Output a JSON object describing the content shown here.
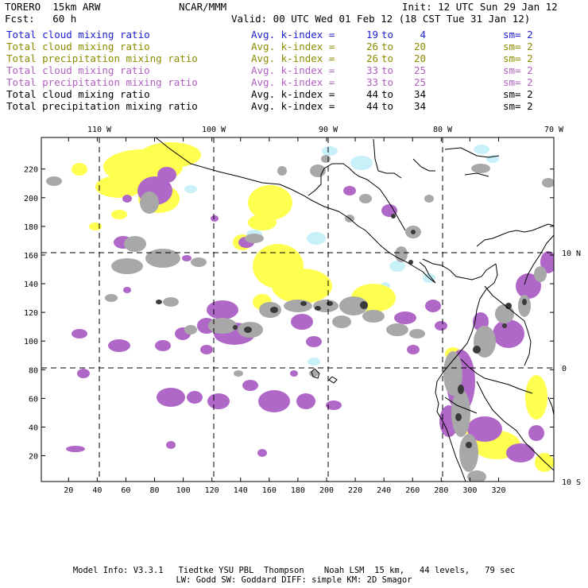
{
  "header": {
    "model": "TORERO  15km ARW",
    "org": "NCAR/MMM",
    "init": "Init: 12 UTC Sun 29 Jan 12",
    "fcst": "Fcst:   60 h",
    "valid": "Valid: 00 UTC Wed 01 Feb 12 (18 CST Tue 31 Jan 12)"
  },
  "legend": [
    {
      "name": "Total cloud mixing ratio",
      "avg": "Avg. k-index =",
      "from": "19",
      "to": "to",
      "end": "4",
      "sm": "sm= 2",
      "color": "#2020d0"
    },
    {
      "name": "Total cloud mixing ratio",
      "avg": "Avg. k-index =",
      "from": "26",
      "to": "to",
      "end": "20",
      "sm": "sm= 2",
      "color": "#8c8c00"
    },
    {
      "name": "Total precipitation mixing ratio",
      "avg": "Avg. k-index =",
      "from": "26",
      "to": "to",
      "end": "20",
      "sm": "sm= 2",
      "color": "#8c8c00"
    },
    {
      "name": "Total cloud mixing ratio",
      "avg": "Avg. k-index =",
      "from": "33",
      "to": "to",
      "end": "25",
      "sm": "sm= 2",
      "color": "#b060c0"
    },
    {
      "name": "Total precipitation mixing ratio",
      "avg": "Avg. k-index =",
      "from": "33",
      "to": "to",
      "end": "25",
      "sm": "sm= 2",
      "color": "#b060c0"
    },
    {
      "name": "Total cloud mixing ratio",
      "avg": "Avg. k-index =",
      "from": "44",
      "to": "to",
      "end": "34",
      "sm": "sm= 2",
      "color": "#000000"
    },
    {
      "name": "Total precipitation mixing ratio",
      "avg": "Avg. k-index =",
      "from": "44",
      "to": "to",
      "end": "34",
      "sm": "sm= 2",
      "color": "#000000"
    }
  ],
  "map": {
    "lon_labels": [
      "110 W",
      "100 W",
      "90 W",
      "80 W",
      "70 W"
    ],
    "lat_labels": [
      "10 N",
      "0",
      "10 S"
    ],
    "x_ticks": [
      "20",
      "40",
      "60",
      "80",
      "100",
      "120",
      "140",
      "160",
      "180",
      "200",
      "220",
      "240",
      "260",
      "280",
      "300",
      "320"
    ],
    "y_ticks": [
      "220",
      "200",
      "180",
      "160",
      "140",
      "120",
      "100",
      "80",
      "60",
      "40",
      "20"
    ],
    "colors": {
      "light_cyan": "#c8f0f8",
      "yellow": "#ffff50",
      "purple": "#b068c8",
      "gray": "#a8a8a8",
      "dark": "#3a3a3a",
      "coast": "#000000"
    }
  },
  "footer": {
    "line1": "Model Info: V3.3.1   Tiedtke YSU PBL  Thompson    Noah LSM  15 km,   44 levels,   79 sec",
    "line2": "LW: Godd SW: Goddard DIFF: simple KM: 2D Smagor"
  }
}
